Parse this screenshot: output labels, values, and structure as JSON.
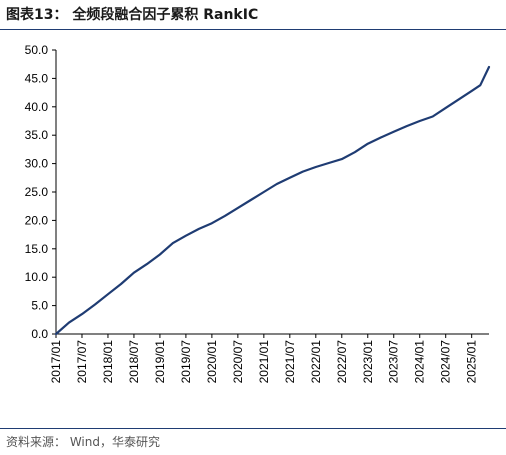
{
  "figure": {
    "title": "图表13：  全频段融合因子累积 RankIC",
    "source": "资料来源：  Wind，华泰研究"
  },
  "colors": {
    "line": "#1f3c73",
    "axis": "#000000",
    "rule": "#1f3c73"
  },
  "chart_data": {
    "type": "line",
    "title": "",
    "xlabel": "",
    "ylabel": "",
    "ylim": [
      0,
      50
    ],
    "yticks": [
      "0.0",
      "5.0",
      "10.0",
      "15.0",
      "20.0",
      "25.0",
      "30.0",
      "35.0",
      "40.0",
      "45.0",
      "50.0"
    ],
    "xticks": [
      "2017/01",
      "2017/07",
      "2018/01",
      "2018/07",
      "2019/01",
      "2019/07",
      "2020/01",
      "2020/07",
      "2021/01",
      "2021/07",
      "2022/01",
      "2022/07",
      "2023/01",
      "2023/07",
      "2024/01",
      "2024/07",
      "2025/01"
    ],
    "x_end": "2025/05",
    "grid": false,
    "legend": "none",
    "series": [
      {
        "x": [
          "2017/01",
          "2017/04",
          "2017/07",
          "2017/10",
          "2018/01",
          "2018/04",
          "2018/07",
          "2018/10",
          "2019/01",
          "2019/04",
          "2019/07",
          "2019/10",
          "2020/01",
          "2020/04",
          "2020/07",
          "2020/10",
          "2021/01",
          "2021/04",
          "2021/07",
          "2021/10",
          "2022/01",
          "2022/04",
          "2022/07",
          "2022/10",
          "2023/01",
          "2023/04",
          "2023/07",
          "2023/10",
          "2024/01",
          "2024/04",
          "2024/07",
          "2024/10",
          "2025/01",
          "2025/03",
          "2025/05"
        ],
        "values": [
          0.0,
          2.0,
          3.5,
          5.2,
          7.0,
          8.8,
          10.8,
          12.3,
          14.0,
          16.0,
          17.3,
          18.5,
          19.5,
          20.8,
          22.2,
          23.6,
          25.0,
          26.4,
          27.5,
          28.6,
          29.4,
          30.1,
          30.8,
          32.0,
          33.5,
          34.6,
          35.6,
          36.6,
          37.5,
          38.3,
          39.8,
          41.3,
          42.8,
          43.8,
          47.0
        ]
      }
    ]
  }
}
